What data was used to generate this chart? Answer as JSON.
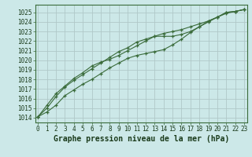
{
  "hours": [
    0,
    1,
    2,
    3,
    4,
    5,
    6,
    7,
    8,
    9,
    10,
    11,
    12,
    13,
    14,
    15,
    16,
    17,
    18,
    19,
    20,
    21,
    22,
    23
  ],
  "line1": [
    1014.1,
    1014.6,
    1015.3,
    1016.3,
    1016.9,
    1017.5,
    1018.0,
    1018.6,
    1019.2,
    1019.7,
    1020.2,
    1020.5,
    1020.7,
    1020.9,
    1021.1,
    1021.6,
    1022.2,
    1022.9,
    1023.5,
    1024.0,
    1024.5,
    1024.9,
    1025.1,
    1025.3
  ],
  "line2": [
    1014.1,
    1015.0,
    1016.2,
    1017.2,
    1017.9,
    1018.5,
    1019.1,
    1019.7,
    1020.3,
    1020.9,
    1021.3,
    1021.9,
    1022.2,
    1022.5,
    1022.5,
    1022.5,
    1022.7,
    1023.0,
    1023.5,
    1024.1,
    1024.5,
    1025.0,
    1025.1,
    1025.3
  ],
  "line3": [
    1014.1,
    1015.3,
    1016.5,
    1017.3,
    1018.1,
    1018.7,
    1019.4,
    1019.8,
    1020.1,
    1020.5,
    1021.0,
    1021.5,
    1022.0,
    1022.5,
    1022.8,
    1023.0,
    1023.2,
    1023.5,
    1023.8,
    1024.1,
    1024.5,
    1025.0,
    1025.1,
    1025.3
  ],
  "line_color": "#3a6b3a",
  "bg_color": "#cce8e8",
  "grid_color": "#b0c8c8",
  "ylim": [
    1013.5,
    1025.8
  ],
  "yticks": [
    1014,
    1015,
    1016,
    1017,
    1018,
    1019,
    1020,
    1021,
    1022,
    1023,
    1024,
    1025
  ],
  "xticks": [
    0,
    1,
    2,
    3,
    4,
    5,
    6,
    7,
    8,
    9,
    10,
    11,
    12,
    13,
    14,
    15,
    16,
    17,
    18,
    19,
    20,
    21,
    22,
    23
  ],
  "xlabel": "Graphe pression niveau de la mer (hPa)",
  "tick_fontsize": 5.5,
  "label_fontsize": 7.0
}
